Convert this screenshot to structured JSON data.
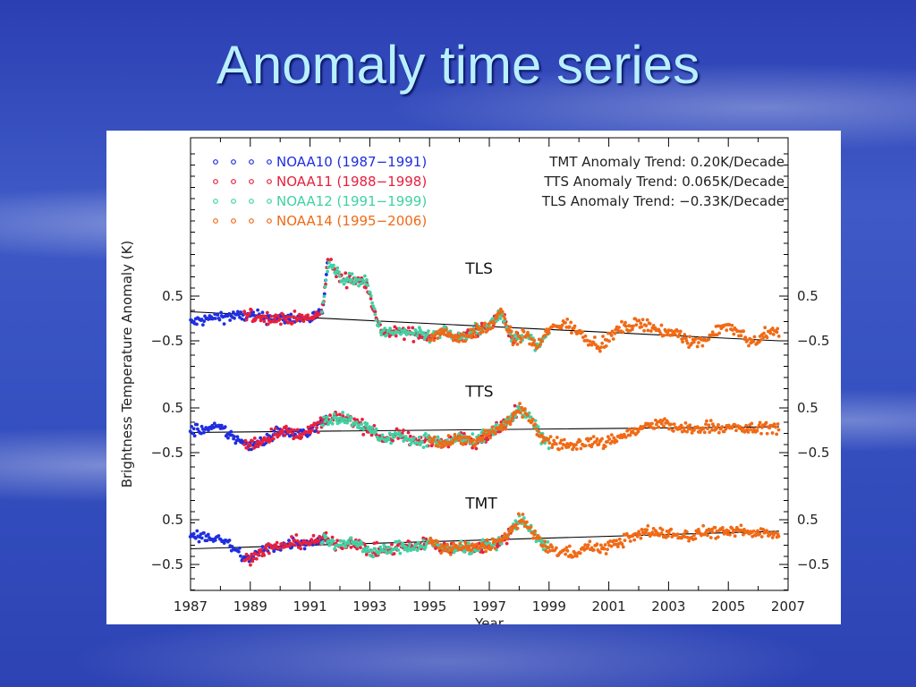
{
  "title": "Anomaly time series",
  "chart_data": {
    "type": "scatter",
    "xlabel": "Year",
    "ylabel": "Brightness Temperature Anomaly (K)",
    "xlim": [
      1987,
      2007
    ],
    "x_ticks": [
      "1987",
      "1989",
      "1991",
      "1993",
      "1995",
      "1997",
      "1999",
      "2001",
      "2003",
      "2005",
      "2007"
    ],
    "y_tick_labels": [
      "0.5",
      "−0.5"
    ],
    "colors": {
      "NOAA10": "#1f2ee0",
      "NOAA11": "#e8203c",
      "NOAA12": "#3fd2a4",
      "NOAA14": "#f06a16",
      "trend": "#000000"
    },
    "legend": [
      {
        "label": "NOAA10 (1987−1991)",
        "color": "#1f2ee0",
        "start": 1987.0,
        "end": 1991.6
      },
      {
        "label": "NOAA11 (1988−1998)",
        "color": "#e8203c",
        "start": 1988.8,
        "end": 1998.0
      },
      {
        "label": "NOAA12 (1991−1999)",
        "color": "#3fd2a4",
        "start": 1991.4,
        "end": 1999.0
      },
      {
        "label": "NOAA14 (1995−2006)",
        "color": "#f06a16",
        "start": 1995.0,
        "end": 2006.7
      }
    ],
    "trend_notes": [
      "TMT Anomaly Trend:  0.20K/Decade",
      "TTS Anomaly Trend: 0.065K/Decade",
      "TLS Anomaly Trend: −0.33K/Decade"
    ],
    "series": [
      {
        "name": "TLS",
        "offset": 3.4,
        "trend_per_decade": -0.33,
        "trend_at_1987": 0.15,
        "anchors": [
          [
            1987,
            -0.1
          ],
          [
            1988,
            0.05
          ],
          [
            1989,
            0.05
          ],
          [
            1990,
            0.0
          ],
          [
            1991,
            0.0
          ],
          [
            1991.4,
            0.1
          ],
          [
            1991.6,
            1.3
          ],
          [
            1992,
            0.9
          ],
          [
            1992.5,
            0.85
          ],
          [
            1992.9,
            0.8
          ],
          [
            1993.3,
            -0.2
          ],
          [
            1993.6,
            -0.35
          ],
          [
            1994,
            -0.3
          ],
          [
            1994.5,
            -0.35
          ],
          [
            1995,
            -0.4
          ],
          [
            1995.5,
            -0.3
          ],
          [
            1996,
            -0.45
          ],
          [
            1996.5,
            -0.3
          ],
          [
            1997,
            -0.2
          ],
          [
            1997.4,
            0.15
          ],
          [
            1997.8,
            -0.5
          ],
          [
            1998.2,
            -0.35
          ],
          [
            1998.6,
            -0.65
          ],
          [
            1999,
            -0.25
          ],
          [
            1999.5,
            -0.1
          ],
          [
            2000,
            -0.3
          ],
          [
            2000.4,
            -0.5
          ],
          [
            2000.8,
            -0.6
          ],
          [
            2001.3,
            -0.25
          ],
          [
            2001.8,
            -0.15
          ],
          [
            2002.3,
            -0.1
          ],
          [
            2002.8,
            -0.35
          ],
          [
            2003.3,
            -0.3
          ],
          [
            2003.8,
            -0.55
          ],
          [
            2004.3,
            -0.45
          ],
          [
            2004.8,
            -0.15
          ],
          [
            2005.3,
            -0.3
          ],
          [
            2005.8,
            -0.55
          ],
          [
            2006.2,
            -0.35
          ],
          [
            2006.7,
            -0.3
          ]
        ]
      },
      {
        "name": "TTS",
        "offset": 0.9,
        "trend_per_decade": 0.065,
        "trend_at_1987": -0.05,
        "anchors": [
          [
            1987,
            0.0
          ],
          [
            1988,
            0.05
          ],
          [
            1988.9,
            -0.35
          ],
          [
            1989.5,
            -0.2
          ],
          [
            1990,
            0.0
          ],
          [
            1990.5,
            -0.1
          ],
          [
            1991,
            0.0
          ],
          [
            1991.5,
            0.2
          ],
          [
            1992,
            0.3
          ],
          [
            1992.5,
            0.2
          ],
          [
            1993,
            0.0
          ],
          [
            1993.5,
            -0.2
          ],
          [
            1994,
            -0.1
          ],
          [
            1994.5,
            -0.25
          ],
          [
            1995,
            -0.2
          ],
          [
            1995.5,
            -0.3
          ],
          [
            1996,
            -0.15
          ],
          [
            1996.5,
            -0.3
          ],
          [
            1997,
            -0.05
          ],
          [
            1997.5,
            0.1
          ],
          [
            1998,
            0.45
          ],
          [
            1998.4,
            0.25
          ],
          [
            1998.8,
            -0.2
          ],
          [
            1999.3,
            -0.3
          ],
          [
            1999.8,
            -0.35
          ],
          [
            2000.3,
            -0.25
          ],
          [
            2000.8,
            -0.3
          ],
          [
            2001.3,
            -0.15
          ],
          [
            2001.8,
            -0.05
          ],
          [
            2002.3,
            0.1
          ],
          [
            2002.8,
            0.15
          ],
          [
            2003.3,
            0.05
          ],
          [
            2003.8,
            0.0
          ],
          [
            2004.3,
            0.1
          ],
          [
            2004.8,
            0.05
          ],
          [
            2005.3,
            0.05
          ],
          [
            2005.8,
            0.0
          ],
          [
            2006.2,
            0.1
          ],
          [
            2006.7,
            0.05
          ]
        ]
      },
      {
        "name": "TMT",
        "offset": -1.6,
        "trend_per_decade": 0.2,
        "trend_at_1987": -0.15,
        "anchors": [
          [
            1987,
            0.1
          ],
          [
            1988,
            0.1
          ],
          [
            1988.9,
            -0.4
          ],
          [
            1989.5,
            -0.15
          ],
          [
            1990,
            -0.1
          ],
          [
            1990.5,
            0.0
          ],
          [
            1991,
            0.0
          ],
          [
            1991.5,
            0.05
          ],
          [
            1992,
            -0.05
          ],
          [
            1992.5,
            0.0
          ],
          [
            1993,
            -0.2
          ],
          [
            1993.5,
            -0.2
          ],
          [
            1994,
            -0.1
          ],
          [
            1994.5,
            -0.1
          ],
          [
            1995,
            0.0
          ],
          [
            1995.5,
            -0.15
          ],
          [
            1996,
            -0.1
          ],
          [
            1996.5,
            -0.15
          ],
          [
            1997,
            -0.05
          ],
          [
            1997.5,
            0.05
          ],
          [
            1998,
            0.5
          ],
          [
            1998.4,
            0.3
          ],
          [
            1998.8,
            -0.1
          ],
          [
            1999.3,
            -0.2
          ],
          [
            1999.8,
            -0.25
          ],
          [
            2000.3,
            -0.1
          ],
          [
            2000.8,
            -0.15
          ],
          [
            2001.3,
            0.0
          ],
          [
            2001.8,
            0.1
          ],
          [
            2002.3,
            0.25
          ],
          [
            2002.8,
            0.2
          ],
          [
            2003.3,
            0.15
          ],
          [
            2003.8,
            0.15
          ],
          [
            2004.3,
            0.25
          ],
          [
            2004.8,
            0.2
          ],
          [
            2005.3,
            0.25
          ],
          [
            2005.8,
            0.2
          ],
          [
            2006.2,
            0.25
          ],
          [
            2006.7,
            0.15
          ]
        ]
      }
    ],
    "series_labels": [
      {
        "text": "TLS",
        "x": 1996.2,
        "y": 4.4
      },
      {
        "text": "TTS",
        "x": 1996.2,
        "y": 1.65
      },
      {
        "text": "TMT",
        "x": 1996.2,
        "y": -0.85
      }
    ]
  }
}
